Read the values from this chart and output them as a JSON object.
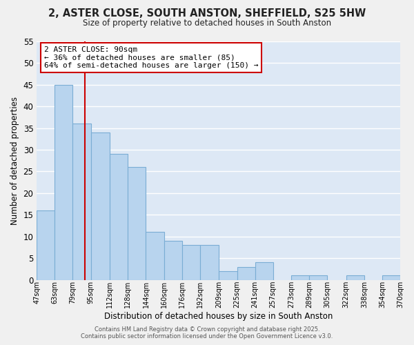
{
  "title": "2, ASTER CLOSE, SOUTH ANSTON, SHEFFIELD, S25 5HW",
  "subtitle": "Size of property relative to detached houses in South Anston",
  "xlabel": "Distribution of detached houses by size in South Anston",
  "ylabel": "Number of detached properties",
  "bar_color": "#b8d4ee",
  "bar_edge_color": "#7aadd4",
  "background_color": "#dde8f5",
  "plot_bg_color": "#dde8f5",
  "grid_color": "#ffffff",
  "annotation_box_color": "#ffffff",
  "annotation_box_edge": "#cc0000",
  "vline_color": "#cc0000",
  "vline_x": 90,
  "bins": [
    47,
    63,
    79,
    95,
    112,
    128,
    144,
    160,
    176,
    192,
    209,
    225,
    241,
    257,
    273,
    289,
    305,
    322,
    338,
    354,
    370
  ],
  "counts": [
    16,
    45,
    36,
    34,
    29,
    26,
    11,
    9,
    8,
    8,
    2,
    3,
    4,
    0,
    1,
    1,
    0,
    1,
    0,
    1
  ],
  "ylim": [
    0,
    55
  ],
  "yticks": [
    0,
    5,
    10,
    15,
    20,
    25,
    30,
    35,
    40,
    45,
    50,
    55
  ],
  "annotation_title": "2 ASTER CLOSE: 90sqm",
  "annotation_line1": "← 36% of detached houses are smaller (85)",
  "annotation_line2": "64% of semi-detached houses are larger (150) →",
  "footer_line1": "Contains HM Land Registry data © Crown copyright and database right 2025.",
  "footer_line2": "Contains public sector information licensed under the Open Government Licence v3.0.",
  "tick_labels": [
    "47sqm",
    "63sqm",
    "79sqm",
    "95sqm",
    "112sqm",
    "128sqm",
    "144sqm",
    "160sqm",
    "176sqm",
    "192sqm",
    "209sqm",
    "225sqm",
    "241sqm",
    "257sqm",
    "273sqm",
    "289sqm",
    "305sqm",
    "322sqm",
    "338sqm",
    "354sqm",
    "370sqm"
  ]
}
